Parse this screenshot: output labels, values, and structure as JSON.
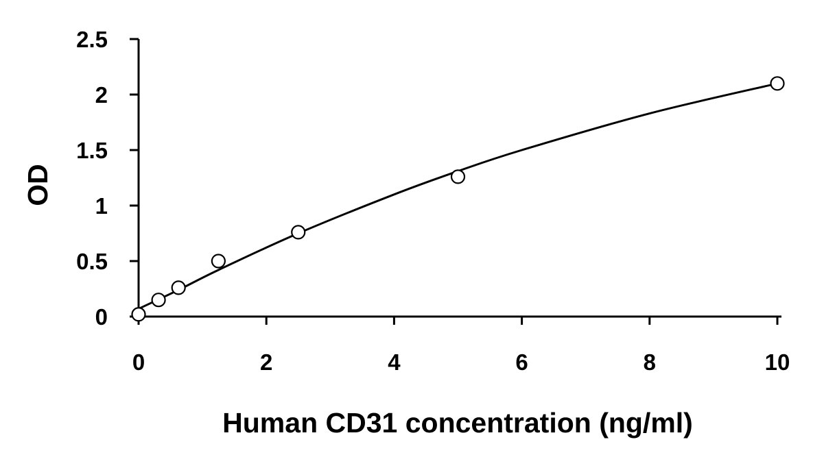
{
  "chart_data": {
    "type": "scatter",
    "title": "",
    "xlabel": "Human CD31 concentration (ng/ml)",
    "ylabel": "OD",
    "xlim": [
      0,
      10
    ],
    "ylim": [
      0,
      2.5
    ],
    "x_ticks": [
      "0",
      "2",
      "4",
      "6",
      "8",
      "10"
    ],
    "y_ticks": [
      "0",
      "0.5",
      "1",
      "1.5",
      "2",
      "2.5"
    ],
    "grid": false,
    "legend": "none",
    "series": [
      {
        "marker": "open-circle",
        "points": [
          {
            "x": 0,
            "y": 0.02
          },
          {
            "x": 0.3125,
            "y": 0.15
          },
          {
            "x": 0.625,
            "y": 0.26
          },
          {
            "x": 1.25,
            "y": 0.5
          },
          {
            "x": 2.5,
            "y": 0.76
          },
          {
            "x": 5,
            "y": 1.26
          },
          {
            "x": 10,
            "y": 2.1
          }
        ]
      }
    ],
    "fit_curve": {
      "style": "smooth line",
      "points": [
        {
          "x": 0,
          "y": 0.07
        },
        {
          "x": 0.625,
          "y": 0.24
        },
        {
          "x": 1.25,
          "y": 0.42
        },
        {
          "x": 2.5,
          "y": 0.75
        },
        {
          "x": 4,
          "y": 1.1
        },
        {
          "x": 5,
          "y": 1.31
        },
        {
          "x": 6,
          "y": 1.5
        },
        {
          "x": 8,
          "y": 1.83
        },
        {
          "x": 10,
          "y": 2.1
        }
      ]
    },
    "colors": {
      "axis": "#000000",
      "marker_stroke": "#000000",
      "marker_fill": "#ffffff",
      "curve": "#000000"
    }
  }
}
